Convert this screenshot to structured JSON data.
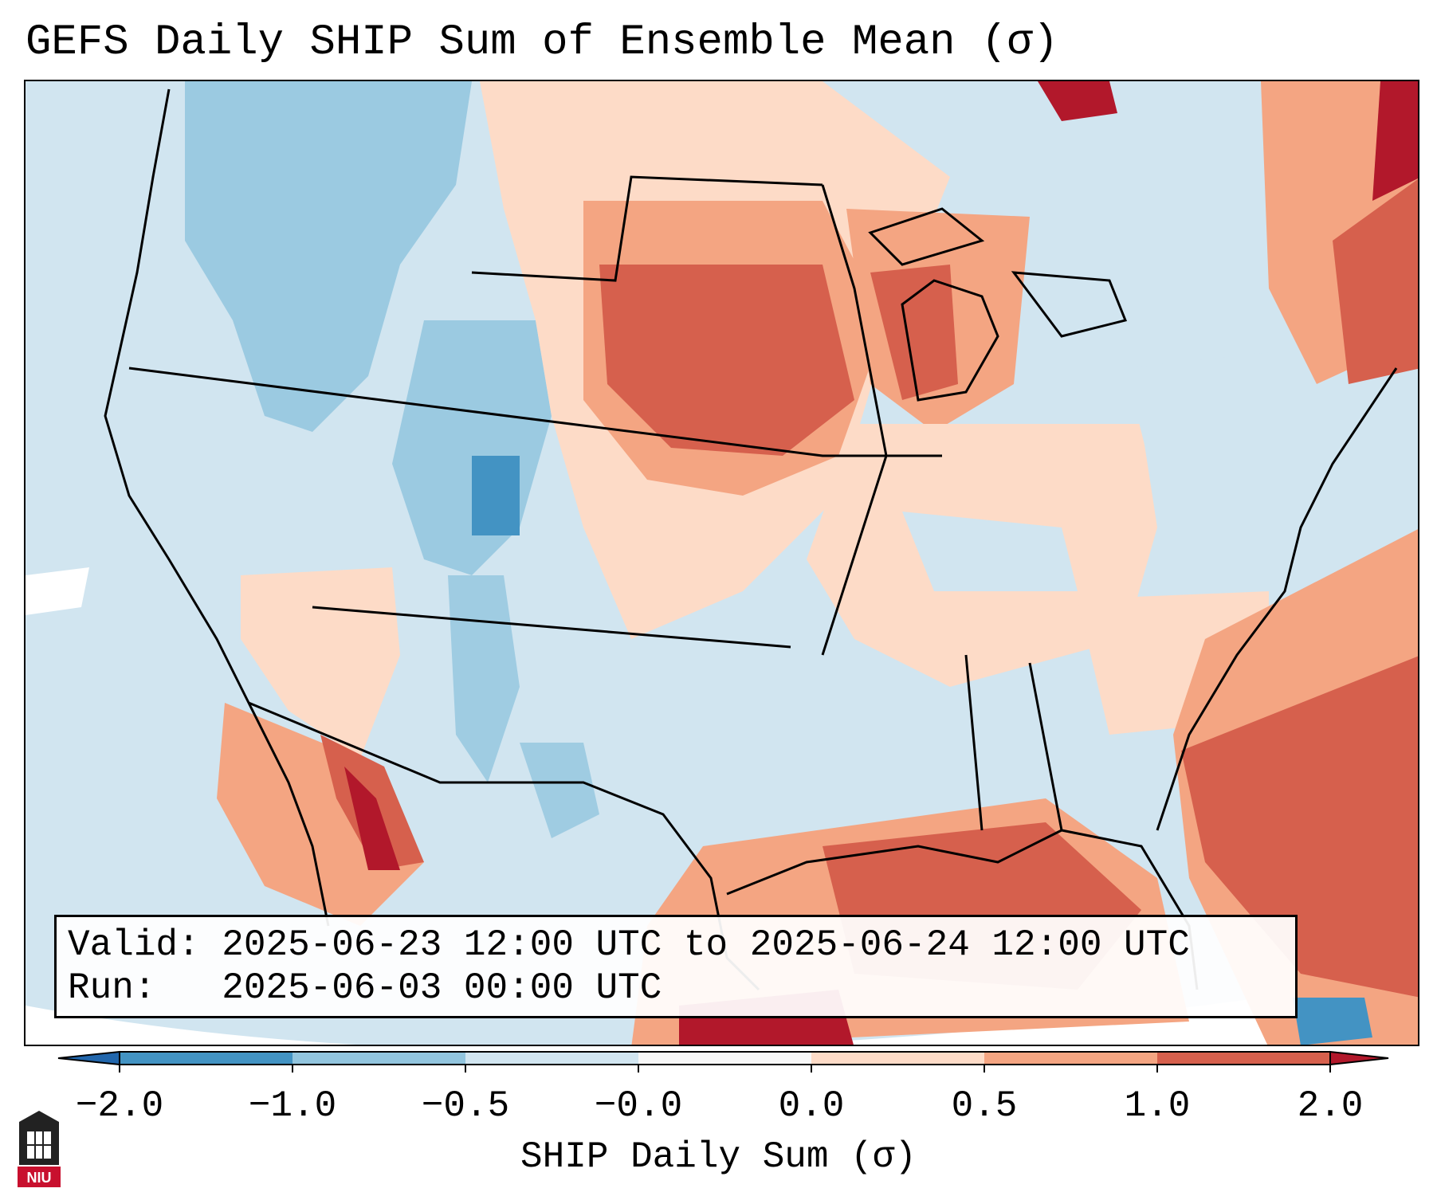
{
  "title": "GEFS Daily SHIP Sum of Ensemble Mean (σ)",
  "info": {
    "valid_label": "Valid:",
    "valid_value": "2025-06-23 12:00 UTC to 2025-06-24 12:00 UTC",
    "run_label": "Run:",
    "run_value": "2025-06-03 00:00 UTC"
  },
  "colorbar": {
    "label": "SHIP Daily Sum (σ)",
    "ticks": [
      "−2.0",
      "−1.0",
      "−0.5",
      "−0.0",
      "0.0",
      "0.5",
      "1.0",
      "2.0"
    ],
    "bins": [
      {
        "from": "<-2.0",
        "to": "-2.0",
        "color": "#2166ac"
      },
      {
        "from": "-2.0",
        "to": "-1.0",
        "color": "#4393c3"
      },
      {
        "from": "-1.0",
        "to": "-0.5",
        "color": "#92c5de"
      },
      {
        "from": "-0.5",
        "to": "-0.0",
        "color": "#d1e5f0"
      },
      {
        "from": "-0.0",
        "to": "0.0",
        "color": "#f7f7f7"
      },
      {
        "from": "0.0",
        "to": "0.5",
        "color": "#fddbc7"
      },
      {
        "from": "0.5",
        "to": "1.0",
        "color": "#f4a582"
      },
      {
        "from": "1.0",
        "to": "2.0",
        "color": "#d6604d"
      },
      {
        "from": "2.0",
        "to": ">2.0",
        "color": "#b2182b"
      }
    ]
  },
  "logo": {
    "text": "NIU",
    "icon": "niu-logo-icon"
  }
}
